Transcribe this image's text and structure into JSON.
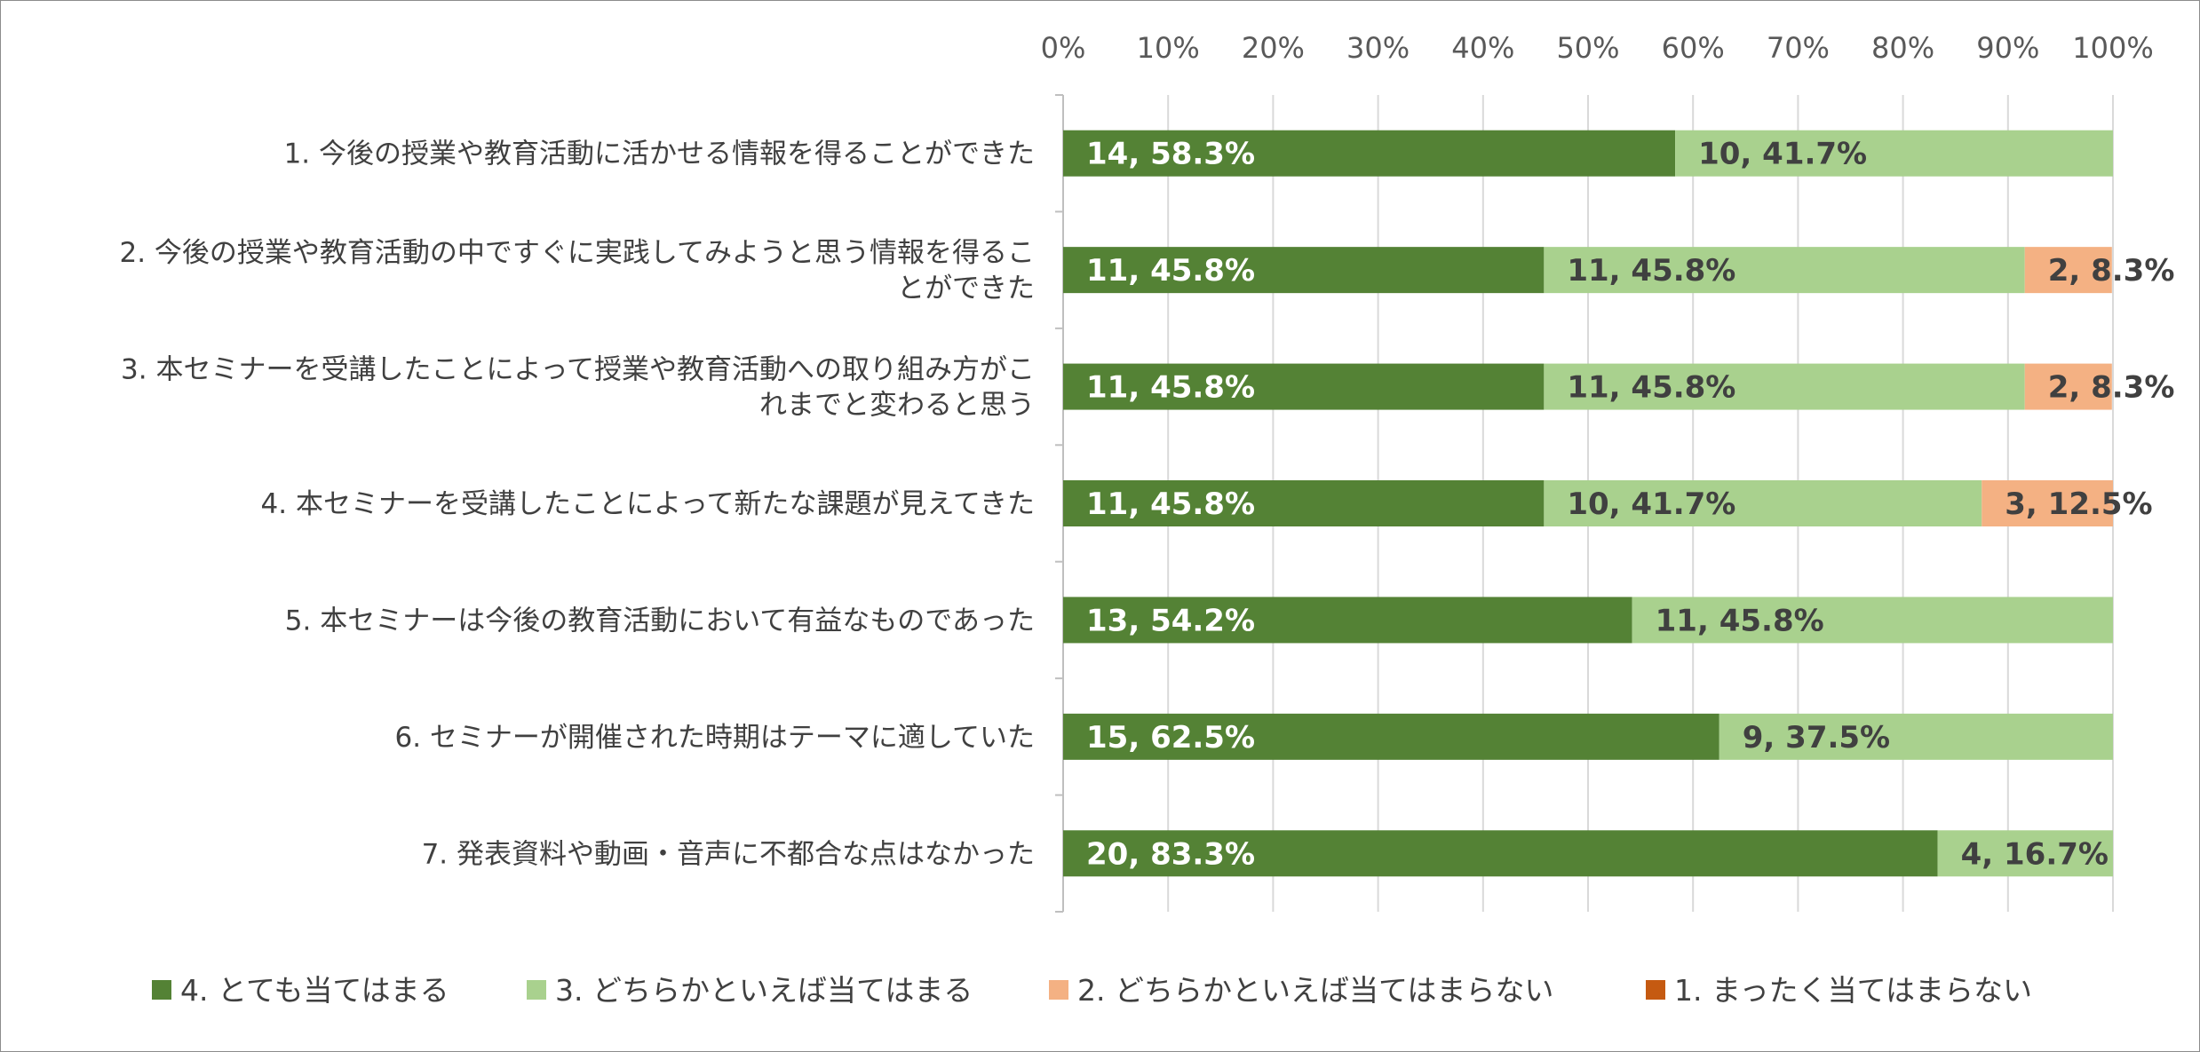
{
  "chart_data": {
    "type": "bar",
    "orientation": "horizontal",
    "stacked": "percent",
    "xlim": [
      0,
      100
    ],
    "x_ticks": [
      "0%",
      "10%",
      "20%",
      "30%",
      "40%",
      "50%",
      "60%",
      "70%",
      "80%",
      "90%",
      "100%"
    ],
    "grid": true,
    "legend_position": "bottom",
    "categories": [
      [
        "1. 今後の授業や教育活動に活かせる情報を得ることができた"
      ],
      [
        "2. 今後の授業や教育活動の中ですぐに実践してみようと思う情報を得るこ",
        "とができた"
      ],
      [
        "3. 本セミナーを受講したことによって授業や教育活動への取り組み方がこ",
        "れまでと変わると思う"
      ],
      [
        "4. 本セミナーを受講したことによって新たな課題が見えてきた"
      ],
      [
        "5. 本セミナーは今後の教育活動において有益なものであった"
      ],
      [
        "6. セミナーが開催された時期はテーマに適していた"
      ],
      [
        "7. 発表資料や動画・音声に不都合な点はなかった"
      ]
    ],
    "series": [
      {
        "name": "4. とても当てはまる",
        "color": "#548235",
        "label_color": "#ffffff",
        "counts": [
          14,
          11,
          11,
          11,
          13,
          15,
          20
        ],
        "percents": [
          58.3,
          45.8,
          45.8,
          45.8,
          54.2,
          62.5,
          83.3
        ],
        "labels": [
          "14, 58.3%",
          "11, 45.8%",
          "11, 45.8%",
          "11, 45.8%",
          "13, 54.2%",
          "15, 62.5%",
          "20, 83.3%"
        ]
      },
      {
        "name": "3. どちらかといえば当てはまる",
        "color": "#a9d18e",
        "label_color": "#404040",
        "counts": [
          10,
          11,
          11,
          10,
          11,
          9,
          4
        ],
        "percents": [
          41.7,
          45.8,
          45.8,
          41.7,
          45.8,
          37.5,
          16.7
        ],
        "labels": [
          "10, 41.7%",
          "11, 45.8%",
          "11, 45.8%",
          "10, 41.7%",
          "11, 45.8%",
          "9, 37.5%",
          "4, 16.7%"
        ]
      },
      {
        "name": "2. どちらかといえば当てはまらない",
        "color": "#f4b183",
        "label_color": "#404040",
        "counts": [
          0,
          2,
          2,
          3,
          0,
          0,
          0
        ],
        "percents": [
          0,
          8.3,
          8.3,
          12.5,
          0,
          0,
          0
        ],
        "labels": [
          "",
          "2, 8.3%",
          "2, 8.3%",
          "3, 12.5%",
          "",
          "",
          ""
        ]
      },
      {
        "name": "1. まったく当てはまらない",
        "color": "#c55a11",
        "label_color": "#404040",
        "counts": [
          0,
          0,
          0,
          0,
          0,
          0,
          0
        ],
        "percents": [
          0,
          0,
          0,
          0,
          0,
          0,
          0
        ],
        "labels": [
          "",
          "",
          "",
          "",
          "",
          "",
          ""
        ]
      }
    ]
  }
}
